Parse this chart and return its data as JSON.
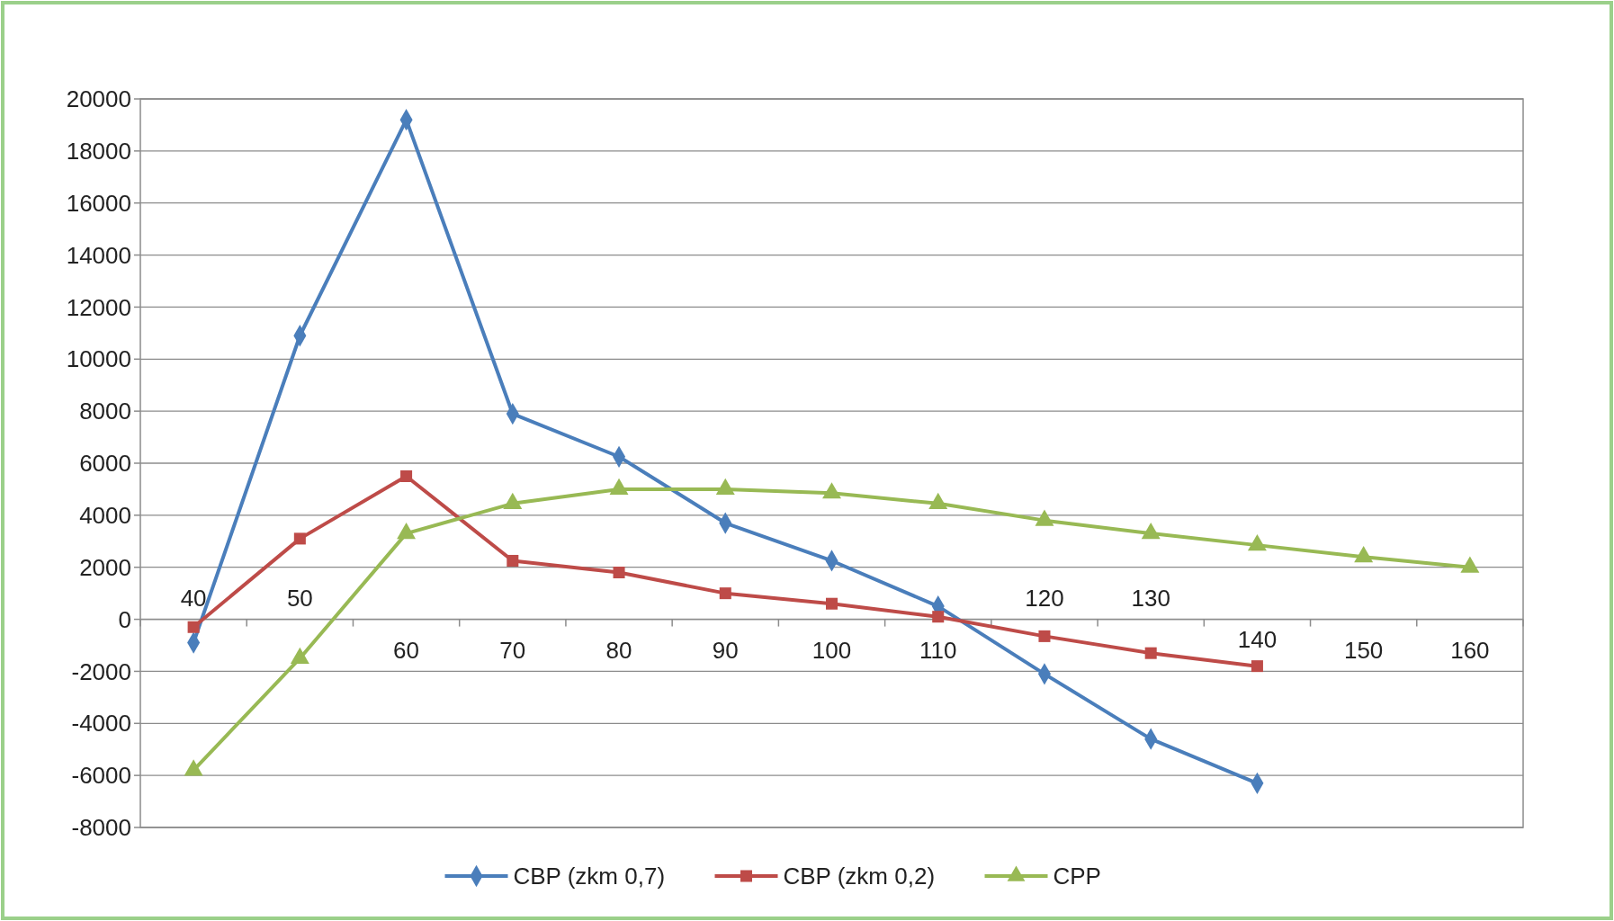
{
  "chart_data": {
    "type": "line",
    "categories": [
      "40",
      "50",
      "60",
      "70",
      "80",
      "90",
      "100",
      "110",
      "120",
      "130",
      "140",
      "150",
      "160"
    ],
    "series": [
      {
        "name": "CBP (zkm 0,7)",
        "color": "#4a7ebb",
        "marker": "diamond",
        "values": [
          -900,
          10900,
          19200,
          7900,
          6250,
          3700,
          2250,
          500,
          -2100,
          -4600,
          -6300,
          null,
          null
        ]
      },
      {
        "name": "CBP (zkm 0,2)",
        "color": "#be4b48",
        "marker": "square",
        "values": [
          -300,
          3100,
          5500,
          2250,
          1800,
          1000,
          600,
          100,
          -650,
          -1300,
          -1800,
          null,
          null
        ]
      },
      {
        "name": "CPP",
        "color": "#98b954",
        "marker": "triangle",
        "values": [
          -5800,
          -1500,
          3300,
          4450,
          5000,
          5000,
          4850,
          4450,
          3800,
          3300,
          2850,
          2400,
          2000
        ]
      }
    ],
    "ylim": [
      -8000,
      20000
    ],
    "yticks": [
      -8000,
      -6000,
      -4000,
      -2000,
      0,
      2000,
      4000,
      6000,
      8000,
      10000,
      12000,
      14000,
      16000,
      18000,
      20000
    ],
    "grid": "y",
    "legend": "bottom",
    "line_style": "solid"
  }
}
